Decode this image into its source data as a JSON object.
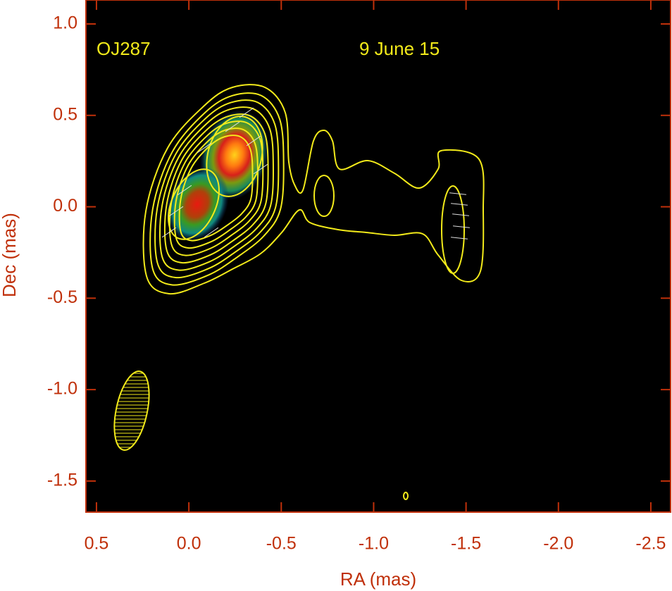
{
  "chart_data": {
    "type": "image",
    "annotations": [
      "OJ287",
      "9 June 15"
    ],
    "xlabel": "RA (mas)",
    "ylabel": "Dec (mas)",
    "xlim": [
      0.557,
      -2.607
    ],
    "ylim": [
      -1.67,
      1.131
    ],
    "xticks": [
      0.5,
      {
        "value": 0,
        "label": "0.0"
      },
      -0.5,
      {
        "value": -1,
        "label": "-1.0"
      },
      -1.5,
      {
        "value": -2,
        "label": "-2.0"
      },
      -2.5
    ],
    "yticks": [
      {
        "value": 1,
        "label": "1.0"
      },
      0.5,
      {
        "value": 0,
        "label": "0.0"
      },
      -0.5,
      {
        "value": -1,
        "label": "-1.0"
      },
      -1.5
    ]
  }
}
